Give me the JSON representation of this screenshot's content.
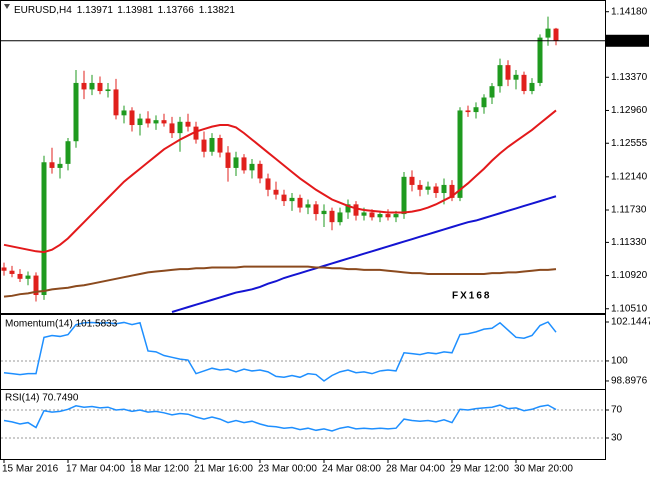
{
  "chart_data": [
    {
      "type": "candlestick",
      "title": "EURUSD,H4",
      "watermark": "FX168",
      "categories": [
        "15 Mar 2016",
        null,
        null,
        null,
        null,
        null,
        null,
        null,
        "17 Mar 04:00",
        null,
        null,
        null,
        null,
        null,
        null,
        null,
        "18 Mar 12:00",
        null,
        null,
        null,
        null,
        null,
        null,
        null,
        "21 Mar 16:00",
        null,
        null,
        null,
        null,
        null,
        null,
        null,
        "23 Mar 00:00",
        null,
        null,
        null,
        null,
        null,
        null,
        null,
        "24 Mar 08:00",
        null,
        null,
        null,
        null,
        null,
        null,
        null,
        "28 Mar 04:00",
        null,
        null,
        null,
        null,
        null,
        null,
        null,
        "29 Mar 12:00",
        null,
        null,
        null,
        null,
        null,
        null,
        null,
        "30 Mar 20:00",
        null,
        null,
        null,
        null,
        null
      ],
      "open": [
        1.1102,
        1.1098,
        1.1094,
        1.1088,
        1.1092,
        1.1068,
        1.1232,
        1.1225,
        1.123,
        1.1258,
        1.133,
        1.1322,
        1.133,
        1.132,
        1.1322,
        1.129,
        1.1296,
        1.1278,
        1.1286,
        1.128,
        1.1284,
        1.128,
        1.1268,
        1.1282,
        1.1276,
        1.126,
        1.1245,
        1.1262,
        1.1244,
        1.1225,
        1.1238,
        1.1222,
        1.123,
        1.1212,
        1.1198,
        1.1192,
        1.1184,
        1.1188,
        1.1176,
        1.118,
        1.1168,
        1.1172,
        1.1158,
        1.117,
        1.118,
        1.1166,
        1.117,
        1.1164,
        1.1168,
        1.1164,
        1.1168,
        1.1214,
        1.1204,
        1.1198,
        1.1202,
        1.1194,
        1.1204,
        1.1188,
        1.1296,
        1.1294,
        1.13,
        1.1312,
        1.1326,
        1.1352,
        1.1334,
        1.134,
        1.132,
        1.133,
        1.1386,
        1.13971
      ],
      "high": [
        1.1108,
        1.1104,
        1.11,
        1.1097,
        1.1096,
        1.124,
        1.125,
        1.1238,
        1.1262,
        1.1346,
        1.1345,
        1.134,
        1.1338,
        1.133,
        1.1335,
        1.1302,
        1.13,
        1.1292,
        1.1295,
        1.129,
        1.1292,
        1.1288,
        1.1288,
        1.1292,
        1.1282,
        1.127,
        1.1268,
        1.1266,
        1.1252,
        1.1245,
        1.1242,
        1.1236,
        1.1234,
        1.1218,
        1.1208,
        1.1198,
        1.1194,
        1.1192,
        1.1186,
        1.1184,
        1.118,
        1.1176,
        1.1176,
        1.1186,
        1.1184,
        1.1176,
        1.1174,
        1.1172,
        1.1174,
        1.1172,
        1.122,
        1.1222,
        1.121,
        1.1208,
        1.1206,
        1.1212,
        1.121,
        1.13,
        1.1302,
        1.1306,
        1.1316,
        1.133,
        1.136,
        1.1358,
        1.1346,
        1.1344,
        1.1336,
        1.139,
        1.1412,
        1.13981
      ],
      "low": [
        1.1092,
        1.109,
        1.1084,
        1.108,
        1.106,
        1.1062,
        1.1218,
        1.1212,
        1.1222,
        1.125,
        1.131,
        1.1315,
        1.1316,
        1.1312,
        1.1285,
        1.128,
        1.127,
        1.1265,
        1.1275,
        1.1272,
        1.1276,
        1.1262,
        1.1245,
        1.127,
        1.1255,
        1.1238,
        1.124,
        1.1238,
        1.1208,
        1.1215,
        1.1218,
        1.1212,
        1.1206,
        1.119,
        1.1186,
        1.1178,
        1.1172,
        1.117,
        1.1168,
        1.116,
        1.1152,
        1.1148,
        1.1154,
        1.1162,
        1.116,
        1.116,
        1.116,
        1.1158,
        1.116,
        1.1158,
        1.1162,
        1.1196,
        1.119,
        1.1192,
        1.1188,
        1.118,
        1.1184,
        1.1184,
        1.1288,
        1.1286,
        1.1292,
        1.1304,
        1.1318,
        1.1326,
        1.1322,
        1.1316,
        1.1316,
        1.1326,
        1.1376,
        1.13766
      ],
      "close": [
        1.1098,
        1.1094,
        1.1088,
        1.1092,
        1.1068,
        1.1232,
        1.1225,
        1.123,
        1.1258,
        1.133,
        1.1322,
        1.133,
        1.132,
        1.1322,
        1.129,
        1.1296,
        1.1278,
        1.1286,
        1.128,
        1.1284,
        1.128,
        1.1268,
        1.1282,
        1.1276,
        1.126,
        1.1245,
        1.1262,
        1.1244,
        1.1225,
        1.1238,
        1.1222,
        1.123,
        1.1212,
        1.1198,
        1.1192,
        1.1184,
        1.1188,
        1.1176,
        1.118,
        1.1168,
        1.1172,
        1.1158,
        1.117,
        1.118,
        1.1166,
        1.117,
        1.1164,
        1.1168,
        1.1164,
        1.1168,
        1.1214,
        1.1204,
        1.1198,
        1.1202,
        1.1194,
        1.1204,
        1.1188,
        1.1296,
        1.1294,
        1.13,
        1.1312,
        1.1326,
        1.1352,
        1.1334,
        1.134,
        1.132,
        1.133,
        1.1386,
        1.13971,
        1.13821
      ],
      "up_color": "#1f9a1f",
      "down_color": "#e0201c",
      "last_price_marker": true,
      "series": [
        {
          "color": "#e3191b",
          "values": [
            1.113,
            1.1128,
            1.1126,
            1.1124,
            1.1122,
            1.1121,
            1.1124,
            1.113,
            1.1138,
            1.1148,
            1.1158,
            1.1168,
            1.1178,
            1.1188,
            1.1198,
            1.1208,
            1.1216,
            1.1224,
            1.1232,
            1.124,
            1.1248,
            1.1254,
            1.126,
            1.1265,
            1.127,
            1.1273,
            1.1276,
            1.1278,
            1.1278,
            1.1275,
            1.1268,
            1.126,
            1.1252,
            1.1244,
            1.1236,
            1.1228,
            1.122,
            1.1212,
            1.1205,
            1.1198,
            1.1192,
            1.1186,
            1.1182,
            1.1178,
            1.1175,
            1.1173,
            1.1172,
            1.1171,
            1.117,
            1.117,
            1.117,
            1.1171,
            1.1173,
            1.1176,
            1.118,
            1.1185,
            1.119,
            1.1198,
            1.1206,
            1.1215,
            1.1224,
            1.1234,
            1.1243,
            1.1251,
            1.1258,
            1.1265,
            1.1272,
            1.128,
            1.1288,
            1.1296
          ]
        },
        {
          "color": "#1414d2",
          "values": [
            null,
            null,
            null,
            null,
            null,
            null,
            null,
            null,
            null,
            null,
            null,
            null,
            null,
            null,
            null,
            null,
            null,
            null,
            null,
            null,
            null,
            1.1047,
            1.105,
            1.1053,
            1.1056,
            1.1059,
            1.1062,
            1.1065,
            1.1068,
            1.1071,
            1.1073,
            1.1075,
            1.1078,
            1.1082,
            1.1085,
            1.1089,
            1.1092,
            1.1095,
            1.1098,
            1.1101,
            1.1104,
            1.1107,
            1.111,
            1.1113,
            1.1116,
            1.1119,
            1.1122,
            1.1125,
            1.1128,
            1.1131,
            1.1134,
            1.1137,
            1.114,
            1.1143,
            1.1146,
            1.1149,
            1.1152,
            1.1155,
            1.1158,
            1.116,
            1.1163,
            1.1166,
            1.1169,
            1.1172,
            1.1175,
            1.1178,
            1.1181,
            1.1184,
            1.1187,
            1.119
          ]
        },
        {
          "color": "#8b4a1e",
          "values": [
            1.1066,
            1.1067,
            1.1069,
            1.107,
            1.1072,
            1.1073,
            1.1075,
            1.1076,
            1.1077,
            1.1079,
            1.108,
            1.1082,
            1.1084,
            1.1086,
            1.1088,
            1.109,
            1.1092,
            1.1094,
            1.1096,
            1.1097,
            1.1098,
            1.1099,
            1.11,
            1.11,
            1.1101,
            1.1101,
            1.1102,
            1.1102,
            1.1102,
            1.1102,
            1.1103,
            1.1103,
            1.1103,
            1.1103,
            1.1103,
            1.1103,
            1.1103,
            1.1103,
            1.1103,
            1.1102,
            1.1102,
            1.1101,
            1.1101,
            1.11,
            1.11,
            1.1099,
            1.1099,
            1.1099,
            1.1098,
            1.1097,
            1.1096,
            1.1095,
            1.1095,
            1.1094,
            1.1094,
            1.1094,
            1.1094,
            1.1094,
            1.1094,
            1.1094,
            1.1094,
            1.1095,
            1.1095,
            1.1096,
            1.1096,
            1.1097,
            1.1098,
            1.1099,
            1.1099,
            1.11
          ]
        }
      ],
      "ylim": [
        1.1047,
        1.143
      ],
      "yticks": [
        {
          "value": 1.1418,
          "label": "1.14180"
        },
        {
          "value": 1.1337,
          "label": "1.13370"
        },
        {
          "value": 1.1296,
          "label": "1.12960"
        },
        1.12555,
        {
          "value": 1.1214,
          "label": "1.12140"
        },
        {
          "value": 1.1173,
          "label": "1.11730"
        },
        {
          "value": 1.1133,
          "label": "1.11330"
        },
        {
          "value": 1.1092,
          "label": "1.10920"
        },
        {
          "value": 1.1051,
          "label": "1.10510"
        }
      ]
    },
    {
      "type": "line",
      "title": "Momentum(14) 101.5833",
      "color": "#1e8fff",
      "values": [
        99.35,
        99.3,
        99.25,
        99.3,
        99.3,
        101.3,
        101.4,
        101.35,
        101.45,
        102.0,
        102.1,
        102.12,
        102.08,
        102.1,
        102.05,
        102.12,
        102.0,
        102.1,
        100.55,
        100.5,
        100.3,
        100.2,
        100.1,
        100.05,
        99.3,
        99.45,
        99.6,
        99.5,
        99.55,
        99.4,
        99.55,
        99.45,
        99.5,
        99.4,
        99.15,
        99.1,
        99.2,
        99.1,
        99.3,
        99.25,
        98.8976,
        99.2,
        99.4,
        99.5,
        99.35,
        99.4,
        99.3,
        99.45,
        99.5,
        99.45,
        100.45,
        100.4,
        100.35,
        100.45,
        100.4,
        100.5,
        100.45,
        101.45,
        101.5,
        101.6,
        101.75,
        101.8,
        102.1,
        101.7,
        101.3,
        101.25,
        101.4,
        101.95,
        102.1447,
        101.5833
      ],
      "ylim": [
        98.51,
        102.53
      ],
      "yticks": [
        102.1447,
        100,
        98.8976
      ],
      "levels": [
        100
      ]
    },
    {
      "type": "line",
      "title": "RSI(14) 70.7490",
      "color": "#1e8fff",
      "values": [
        55,
        53,
        50,
        52,
        45,
        69,
        67,
        68,
        71,
        76,
        74,
        75,
        73,
        74,
        70,
        71,
        68,
        70,
        67,
        68,
        66,
        63,
        65,
        64,
        60,
        57,
        60,
        57,
        52,
        55,
        52,
        54,
        50,
        47,
        46,
        44,
        45,
        42,
        44,
        41,
        43,
        40,
        44,
        46,
        43,
        44,
        43,
        44,
        43,
        44,
        57,
        55,
        54,
        55,
        53,
        56,
        52,
        71,
        70,
        72,
        73,
        74,
        77,
        72,
        73,
        69,
        71,
        75,
        77,
        70.749
      ],
      "ylim": [
        0,
        100
      ],
      "yticks": [
        70,
        30
      ],
      "levels": [
        70,
        30
      ]
    }
  ]
}
